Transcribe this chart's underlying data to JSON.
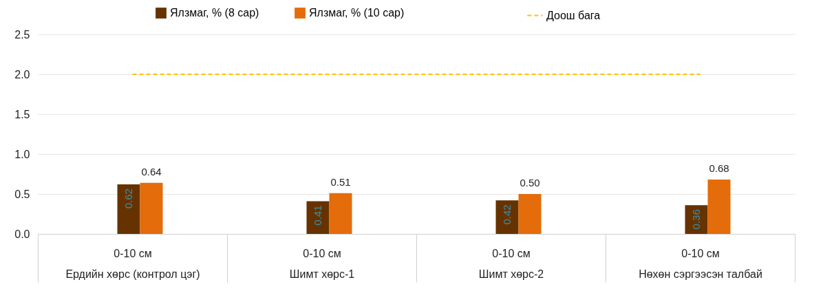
{
  "chart_data": {
    "type": "bar",
    "categories": [
      "0-10 см\nЕрдийн хөрс (контрол цэг)",
      "0-10 см\nШимт хөрс-1",
      "0-10 см\nШимт хөрс-2",
      "0-10 см\nНөхөн сэргээсэн талбай"
    ],
    "series": [
      {
        "name": "Ялзмаг, % (8 сар)",
        "color": "#663300",
        "values": [
          0.62,
          0.41,
          0.42,
          0.36
        ],
        "value_labels": [
          "0.62",
          "0.41",
          "0.42",
          "0.36"
        ]
      },
      {
        "name": "Ялзмаг, % (10 сар)",
        "color": "#e46c0a",
        "values": [
          0.64,
          0.51,
          0.5,
          0.68
        ],
        "value_labels": [
          "0.64",
          "0.51",
          "0.50",
          "0.68"
        ]
      },
      {
        "name": "Доош бага",
        "type": "line",
        "color": "#ffc000",
        "values": [
          2,
          2,
          2,
          2
        ],
        "line_style": "dashed",
        "marker": "none"
      }
    ],
    "ylim": [
      0,
      2.5
    ],
    "yticks": [
      {
        "value": 0,
        "label": "0.0"
      },
      {
        "value": 0.5,
        "label": "0.5"
      },
      {
        "value": 1,
        "label": "1.0"
      },
      {
        "value": 1.5,
        "label": "1.5"
      },
      {
        "value": 2,
        "label": "2.0"
      },
      {
        "value": 2.5,
        "label": "2.5"
      }
    ],
    "grid": "y",
    "legend": "top"
  }
}
